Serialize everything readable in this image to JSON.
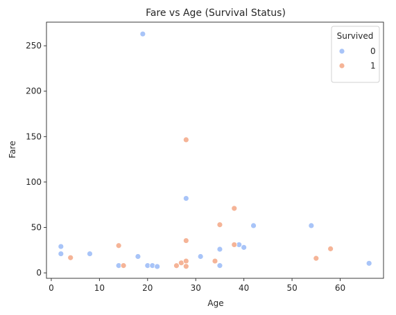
{
  "chart_data": {
    "type": "scatter",
    "title": "Fare vs Age (Survival Status)",
    "xlabel": "Age",
    "ylabel": "Fare",
    "xlim": [
      -1,
      69
    ],
    "ylim": [
      -6,
      276
    ],
    "xticks": [
      0,
      10,
      20,
      30,
      40,
      50,
      60
    ],
    "yticks": [
      0,
      50,
      100,
      150,
      200,
      250
    ],
    "grid": false,
    "legend": {
      "title": "Survived",
      "placement": "top-right"
    },
    "series": [
      {
        "name": "0",
        "color": "#a8c4f8",
        "points": [
          [
            2,
            29
          ],
          [
            2,
            21
          ],
          [
            8,
            21
          ],
          [
            14,
            8
          ],
          [
            18,
            18
          ],
          [
            19,
            263
          ],
          [
            20,
            8
          ],
          [
            21,
            8
          ],
          [
            22,
            7
          ],
          [
            28,
            82
          ],
          [
            31,
            18
          ],
          [
            35,
            26
          ],
          [
            35,
            8
          ],
          [
            39,
            31
          ],
          [
            40,
            28
          ],
          [
            42,
            52
          ],
          [
            54,
            52
          ],
          [
            66,
            10.5
          ]
        ]
      },
      {
        "name": "1",
        "color": "#f5b497",
        "points": [
          [
            4,
            16.7
          ],
          [
            14,
            30
          ],
          [
            15,
            8
          ],
          [
            26,
            7.9
          ],
          [
            27,
            11
          ],
          [
            28,
            146.5
          ],
          [
            28,
            35.5
          ],
          [
            28,
            13
          ],
          [
            28,
            7.2
          ],
          [
            34,
            13
          ],
          [
            35,
            53
          ],
          [
            38,
            71
          ],
          [
            38,
            31
          ],
          [
            55,
            16
          ],
          [
            58,
            26.5
          ]
        ]
      }
    ]
  }
}
